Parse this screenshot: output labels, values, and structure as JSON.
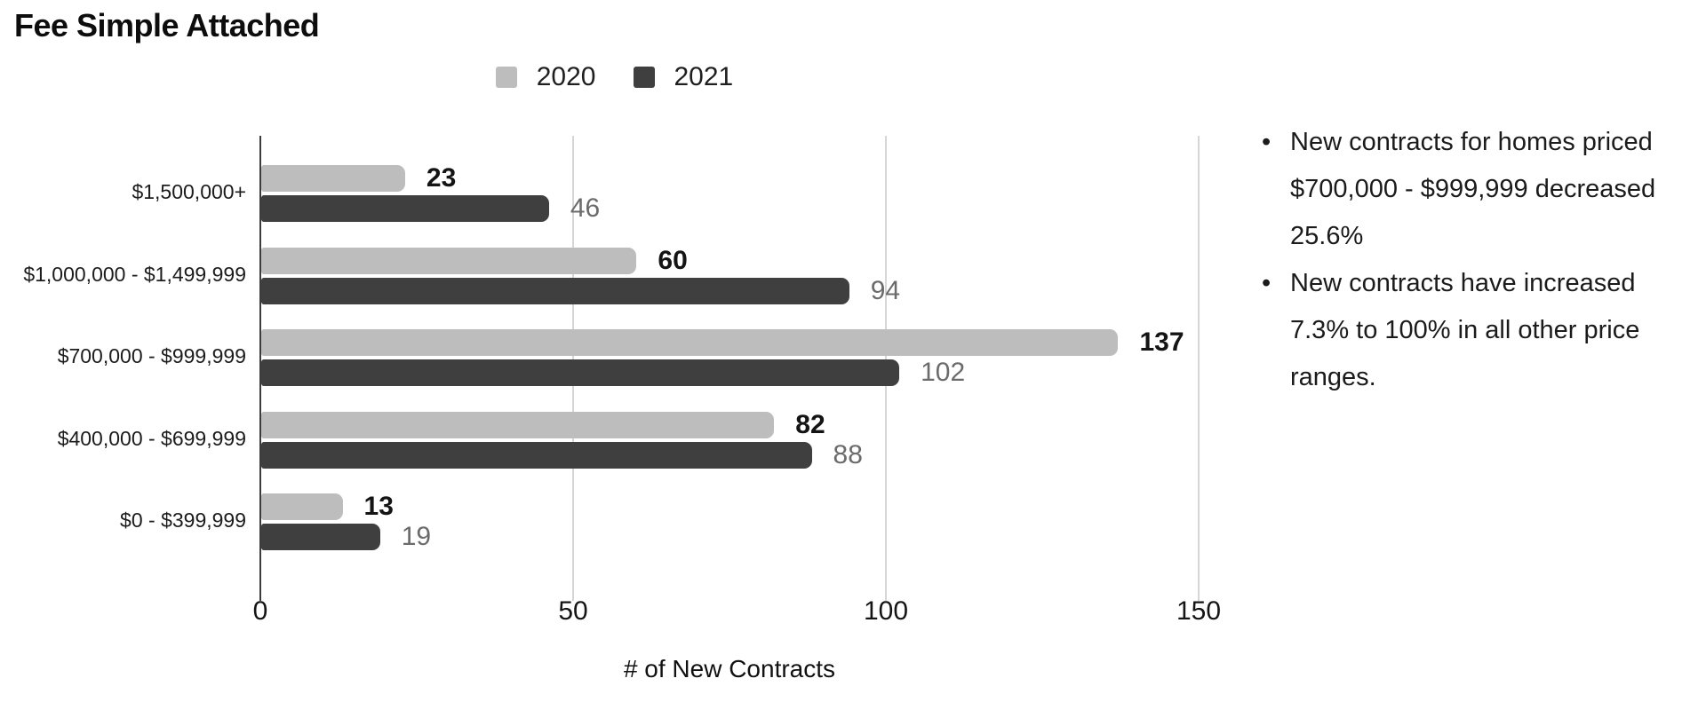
{
  "title": "Fee Simple Attached",
  "chart_data": {
    "type": "bar",
    "orientation": "horizontal",
    "title": "Fee Simple Attached",
    "categories": [
      "$1,500,000+",
      "$1,000,000 - $1,499,999",
      "$700,000 - $999,999",
      "$400,000 - $699,999",
      "$0 - $399,999"
    ],
    "series": [
      {
        "name": "2020",
        "color": "#bdbdbd",
        "label_color": "#141414",
        "label_bold": true,
        "values": [
          23,
          60,
          137,
          82,
          13
        ]
      },
      {
        "name": "2021",
        "color": "#3f3f3f",
        "label_color": "#6b6b6b",
        "label_bold": false,
        "values": [
          46,
          94,
          102,
          88,
          19
        ]
      }
    ],
    "xlabel": "# of New Contracts",
    "x_ticks": [
      0,
      50,
      100,
      150
    ],
    "xlim": [
      0,
      155
    ],
    "grid": true,
    "legend_position": "top-center",
    "axis_color": "#3c3c3c",
    "gridline_color": "#d6d6d6"
  },
  "notes": {
    "items": [
      "New contracts for homes priced $700,000 - $999,999 decreased 25.6%",
      "New contracts have increased 7.3% to 100% in all other price ranges."
    ]
  }
}
